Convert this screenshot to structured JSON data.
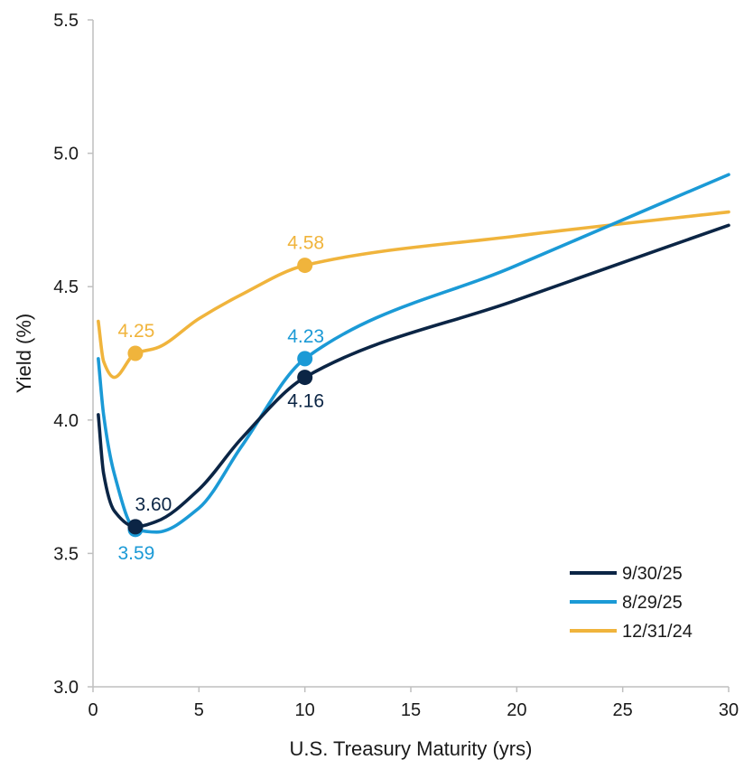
{
  "chart_data": {
    "type": "line",
    "title": "",
    "xlabel": "U.S. Treasury Maturity (yrs)",
    "ylabel": "Yield (%)",
    "xlim": [
      0,
      30
    ],
    "ylim": [
      3.0,
      5.5
    ],
    "xticks": [
      0,
      5,
      10,
      15,
      20,
      25,
      30
    ],
    "xtick_labels": [
      "0",
      "5",
      "10",
      "15",
      "20",
      "25",
      "30"
    ],
    "yticks": [
      3.0,
      3.5,
      4.0,
      4.5,
      5.0,
      5.5
    ],
    "ytick_labels": [
      "3.0",
      "3.5",
      "4.0",
      "4.5",
      "5.0",
      "5.5"
    ],
    "grid": false,
    "legend_position": "bottom-right",
    "series": [
      {
        "name": "9/30/25",
        "color": "#0b2545",
        "points": [
          [
            0.25,
            4.02
          ],
          [
            0.5,
            3.8
          ],
          [
            1,
            3.66
          ],
          [
            2,
            3.6
          ],
          [
            3,
            3.62
          ],
          [
            5,
            3.74
          ],
          [
            7,
            3.93
          ],
          [
            10,
            4.16
          ],
          [
            20,
            4.45
          ],
          [
            30,
            4.73
          ]
        ],
        "markers": [
          {
            "x": 2,
            "y": 3.6,
            "label": "3.60",
            "label_side": "above"
          },
          {
            "x": 10,
            "y": 4.16,
            "label": "4.16",
            "label_side": "below"
          }
        ]
      },
      {
        "name": "8/29/25",
        "color": "#1b9ad6",
        "points": [
          [
            0.25,
            4.23
          ],
          [
            0.5,
            4.02
          ],
          [
            1,
            3.8
          ],
          [
            2,
            3.59
          ],
          [
            3,
            3.58
          ],
          [
            5,
            3.67
          ],
          [
            7,
            3.9
          ],
          [
            10,
            4.23
          ],
          [
            20,
            4.58
          ],
          [
            30,
            4.92
          ]
        ],
        "markers": [
          {
            "x": 2,
            "y": 3.59,
            "label": "3.59",
            "label_side": "below"
          },
          {
            "x": 10,
            "y": 4.23,
            "label": "4.23",
            "label_side": "above"
          }
        ]
      },
      {
        "name": "12/31/24",
        "color": "#f0b43c",
        "points": [
          [
            0.25,
            4.37
          ],
          [
            0.5,
            4.22
          ],
          [
            1,
            4.16
          ],
          [
            2,
            4.25
          ],
          [
            3,
            4.27
          ],
          [
            5,
            4.38
          ],
          [
            7,
            4.47
          ],
          [
            10,
            4.58
          ],
          [
            20,
            4.69
          ],
          [
            30,
            4.78
          ]
        ],
        "markers": [
          {
            "x": 2,
            "y": 4.25,
            "label": "4.25",
            "label_side": "above"
          },
          {
            "x": 10,
            "y": 4.58,
            "label": "4.58",
            "label_side": "above"
          }
        ]
      }
    ]
  }
}
